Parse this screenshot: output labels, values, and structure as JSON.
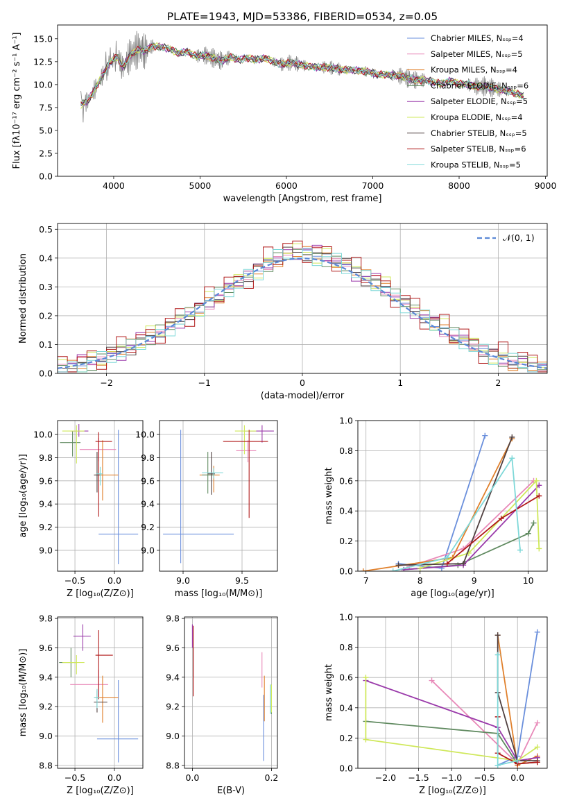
{
  "palette": [
    "#6a8fdc",
    "#e888b8",
    "#e0802c",
    "#608a60",
    "#9a3aaa",
    "#cfe85a",
    "#504040",
    "#b01818",
    "#7ed8d8"
  ],
  "chart_data": [
    {
      "id": "spectrum",
      "type": "line",
      "title": "PLATE=1943, MJD=53386, FIBERID=0534, z=0.05",
      "xlabel": "wavelength [Angstrom, rest frame]",
      "ylabel": "Flux [fλ10⁻¹⁷ erg cm⁻² s⁻¹ A⁻¹]",
      "xlim": [
        3350,
        9020
      ],
      "ylim": [
        0,
        16.5
      ],
      "xticks": [
        4000,
        5000,
        6000,
        7000,
        8000,
        9000
      ],
      "yticks": [
        0.0,
        2.5,
        5.0,
        7.5,
        10.0,
        12.5,
        15.0
      ],
      "legend_position": "upper-right",
      "data_color": "#808080",
      "data_x": [
        3620,
        3700,
        3800,
        3900,
        3960,
        4050,
        4100,
        4200,
        4300,
        4350,
        4450,
        4550,
        4650,
        4750,
        4850,
        4950,
        5050,
        5150,
        5250,
        5350,
        5450,
        5550,
        5650,
        5750,
        5850,
        5950,
        6050,
        6150,
        6250,
        6350,
        6450,
        6550,
        6650,
        6750,
        6850,
        6950,
        7050,
        7150,
        7250,
        7350,
        7400,
        7500,
        7600,
        7700,
        7800,
        7900,
        8000,
        8100,
        8200,
        8300,
        8400,
        8500,
        8600,
        8700,
        8750
      ],
      "data_y": [
        7.8,
        8.2,
        9.8,
        11.5,
        12.5,
        13.1,
        11.8,
        13.3,
        13.9,
        13.6,
        14.2,
        14.1,
        13.9,
        13.4,
        13.6,
        13.1,
        13.2,
        12.9,
        12.6,
        13.0,
        12.7,
        12.9,
        12.7,
        12.9,
        12.5,
        12.2,
        12.4,
        12.2,
        12.0,
        11.9,
        11.9,
        11.8,
        11.6,
        11.6,
        11.5,
        11.4,
        11.1,
        11.1,
        11.0,
        10.9,
        10.7,
        10.5,
        10.5,
        10.3,
        10.1,
        10.4,
        10.1,
        10.0,
        9.8,
        9.8,
        9.6,
        9.4,
        9.2,
        8.9,
        8.7
      ],
      "series": [
        {
          "name": "Chabrier MILES, N_SSP=4"
        },
        {
          "name": "Salpeter MILES, N_SSP=5"
        },
        {
          "name": "Kroupa MILES, N_SSP=4"
        },
        {
          "name": "Chabrier ELODIE, N_SSP=6"
        },
        {
          "name": "Salpeter ELODIE, N_SSP=5"
        },
        {
          "name": "Kroupa ELODIE, N_SSP=4"
        },
        {
          "name": "Chabrier STELIB, N_SSP=5"
        },
        {
          "name": "Salpeter STELIB, N_SSP=6"
        },
        {
          "name": "Kroupa STELIB, N_SSP=5"
        }
      ]
    },
    {
      "id": "residuals",
      "type": "line",
      "xlabel": "(data-model)/error",
      "ylabel": "Normed distribution",
      "xlim": [
        -2.5,
        2.5
      ],
      "ylim": [
        0,
        0.52
      ],
      "xticks": [
        -2,
        -1,
        0,
        1,
        2
      ],
      "yticks": [
        0.0,
        0.1,
        0.2,
        0.3,
        0.4,
        0.5
      ],
      "grid": true,
      "legend_position": "upper-right",
      "reference_curve": {
        "name": "𝒩(0, 1)",
        "mean": 0,
        "sigma": 1,
        "style": "dashed",
        "color": "#5a88d6"
      },
      "bins": [
        -2.5,
        -2.4,
        -2.3,
        -2.2,
        -2.1,
        -2.0,
        -1.9,
        -1.8,
        -1.7,
        -1.6,
        -1.5,
        -1.4,
        -1.3,
        -1.2,
        -1.1,
        -1.0,
        -0.9,
        -0.8,
        -0.7,
        -0.6,
        -0.5,
        -0.4,
        -0.3,
        -0.2,
        -0.1,
        0.0,
        0.1,
        0.2,
        0.3,
        0.4,
        0.5,
        0.6,
        0.7,
        0.8,
        0.9,
        1.0,
        1.1,
        1.2,
        1.3,
        1.4,
        1.5,
        1.6,
        1.7,
        1.8,
        1.9,
        2.0,
        2.1,
        2.2,
        2.3,
        2.4,
        2.5
      ],
      "hist_base": [
        0.018,
        0.025,
        0.03,
        0.04,
        0.05,
        0.062,
        0.075,
        0.09,
        0.105,
        0.12,
        0.14,
        0.16,
        0.18,
        0.2,
        0.22,
        0.245,
        0.27,
        0.29,
        0.315,
        0.34,
        0.36,
        0.38,
        0.4,
        0.41,
        0.42,
        0.42,
        0.41,
        0.4,
        0.39,
        0.37,
        0.35,
        0.33,
        0.31,
        0.29,
        0.265,
        0.24,
        0.215,
        0.19,
        0.17,
        0.15,
        0.13,
        0.11,
        0.095,
        0.08,
        0.065,
        0.05,
        0.04,
        0.032,
        0.025,
        0.02
      ],
      "series": [
        {
          "jitter": [
            0.0,
            0.005,
            -0.005,
            0.01,
            -0.01,
            0.005
          ]
        },
        {
          "jitter": [
            0.01,
            -0.01,
            0.02,
            -0.015,
            0.005,
            0.0
          ]
        },
        {
          "jitter": [
            -0.01,
            0.02,
            -0.01,
            0.015,
            -0.02,
            0.01
          ]
        },
        {
          "jitter": [
            0.015,
            -0.005,
            0.01,
            -0.02,
            0.02,
            -0.01
          ]
        },
        {
          "jitter": [
            -0.02,
            0.01,
            0.025,
            -0.01,
            0.0,
            0.015
          ]
        },
        {
          "jitter": [
            0.02,
            0.0,
            -0.02,
            0.03,
            -0.015,
            0.01
          ]
        },
        {
          "jitter": [
            0.0,
            -0.02,
            0.015,
            0.01,
            -0.01,
            0.02
          ]
        },
        {
          "jitter": [
            0.035,
            -0.03,
            0.02,
            0.04,
            -0.025,
            0.03
          ]
        },
        {
          "jitter": [
            -0.015,
            0.02,
            -0.025,
            0.005,
            0.02,
            -0.02
          ]
        }
      ]
    },
    {
      "id": "age-vs-Z",
      "type": "scatter",
      "xlabel": "Z [log₁₀(Z/Z⊙)]",
      "ylabel": "age  [log₁₀(age/yr)]",
      "xlim": [
        -0.72,
        0.36
      ],
      "ylim": [
        8.82,
        10.12
      ],
      "xticks": [
        -0.5,
        0.0
      ],
      "yticks": [
        9.0,
        9.2,
        9.4,
        9.6,
        9.8,
        10.0
      ],
      "grid": true,
      "errorbars": [
        {
          "x": 0.05,
          "xerr": [
            0.25,
            0.25
          ],
          "y": 9.14,
          "yerr": [
            0.26,
            0.9
          ]
        },
        {
          "x": -0.2,
          "xerr": [
            0.24,
            0.22
          ],
          "y": 9.87,
          "yerr": [
            0.1,
            0.1
          ]
        },
        {
          "x": -0.15,
          "xerr": [
            0.1,
            0.2
          ],
          "y": 9.65,
          "yerr": [
            0.22,
            0.3
          ]
        },
        {
          "x": -0.53,
          "xerr": [
            0.16,
            0.1
          ],
          "y": 9.93,
          "yerr": [
            0.12,
            0.1
          ]
        },
        {
          "x": -0.45,
          "xerr": [
            0.1,
            0.12
          ],
          "y": 10.03,
          "yerr": [
            0.05,
            0.06
          ]
        },
        {
          "x": -0.48,
          "xerr": [
            0.18,
            0.1
          ],
          "y": 10.03,
          "yerr": [
            0.28,
            0.05
          ]
        },
        {
          "x": -0.22,
          "xerr": [
            0.04,
            0.05
          ],
          "y": 9.65,
          "yerr": [
            0.15,
            0.2
          ]
        },
        {
          "x": -0.2,
          "xerr": [
            0.04,
            0.17
          ],
          "y": 9.94,
          "yerr": [
            0.65,
            0.08
          ]
        },
        {
          "x": -0.18,
          "xerr": [
            0.05,
            0.03
          ],
          "y": 9.66,
          "yerr": [
            0.1,
            0.06
          ]
        }
      ]
    },
    {
      "id": "age-vs-mass",
      "type": "scatter",
      "xlabel": "mass [log₁₀(M/M⊙)]",
      "xlim": [
        8.8,
        9.8
      ],
      "ylim": [
        8.82,
        10.12
      ],
      "xticks": [
        9.0,
        9.5
      ],
      "yticks": [
        9.0,
        9.2,
        9.4,
        9.6,
        9.8,
        10.0
      ],
      "grid": true,
      "errorbars": [
        {
          "x": 8.98,
          "xerr": [
            0.15,
            0.45
          ],
          "y": 9.14,
          "yerr": [
            0.25,
            0.9
          ]
        },
        {
          "x": 9.55,
          "xerr": [
            0.1,
            0.07
          ],
          "y": 9.86,
          "yerr": [
            0.1,
            0.09
          ]
        },
        {
          "x": 9.26,
          "xerr": [
            0.12,
            0.05
          ],
          "y": 9.65,
          "yerr": [
            0.15,
            0.08
          ]
        },
        {
          "x": 9.21,
          "xerr": [
            0.05,
            0.05
          ],
          "y": 9.65,
          "yerr": [
            0.16,
            0.2
          ]
        },
        {
          "x": 9.67,
          "xerr": [
            0.15,
            0.1
          ],
          "y": 10.03,
          "yerr": [
            0.1,
            0.05
          ]
        },
        {
          "x": 9.52,
          "xerr": [
            0.08,
            0.1
          ],
          "y": 10.03,
          "yerr": [
            0.2,
            0.05
          ]
        },
        {
          "x": 9.24,
          "xerr": [
            0.03,
            0.03
          ],
          "y": 9.66,
          "yerr": [
            0.18,
            0.19
          ]
        },
        {
          "x": 9.56,
          "xerr": [
            0.22,
            0.16
          ],
          "y": 9.94,
          "yerr": [
            0.66,
            0.1
          ]
        },
        {
          "x": 9.26,
          "xerr": [
            0.1,
            0.08
          ],
          "y": 9.67,
          "yerr": [
            0.05,
            0.04
          ]
        }
      ]
    },
    {
      "id": "massweight-vs-age",
      "type": "line",
      "xlabel": "age  [log₁₀(age/yr)]",
      "ylabel": "mass weight",
      "xlim": [
        6.85,
        10.35
      ],
      "ylim": [
        0,
        1.0
      ],
      "xticks": [
        7,
        8,
        9,
        10
      ],
      "yticks": [
        0.0,
        0.2,
        0.4,
        0.6,
        0.8,
        1.0
      ],
      "grid": true,
      "series": [
        {
          "x": [
            7.6,
            8.4,
            9.2
          ],
          "y": [
            0.05,
            0.02,
            0.9
          ]
        },
        {
          "x": [
            7.8,
            8.8,
            10.1
          ],
          "y": [
            0.03,
            0.15,
            0.6
          ]
        },
        {
          "x": [
            6.95,
            8.6,
            9.7
          ],
          "y": [
            0.0,
            0.09,
            0.88
          ]
        },
        {
          "x": [
            7.7,
            8.7,
            10.0,
            10.1
          ],
          "y": [
            0.01,
            0.04,
            0.25,
            0.32
          ]
        },
        {
          "x": [
            7.7,
            8.8,
            10.2
          ],
          "y": [
            0.01,
            0.04,
            0.57
          ]
        },
        {
          "x": [
            8.0,
            8.9,
            10.15,
            10.2
          ],
          "y": [
            0.02,
            0.12,
            0.6,
            0.15
          ]
        },
        {
          "x": [
            7.6,
            8.8,
            9.7
          ],
          "y": [
            0.04,
            0.05,
            0.89
          ]
        },
        {
          "x": [
            8.5,
            9.5,
            10.2
          ],
          "y": [
            0.05,
            0.35,
            0.5
          ]
        },
        {
          "x": [
            7.5,
            8.5,
            9.7,
            9.85
          ],
          "y": [
            0.0,
            0.09,
            0.75,
            0.14
          ]
        }
      ]
    },
    {
      "id": "mass-vs-Z",
      "type": "scatter",
      "xlabel": "Z [log₁₀(Z/Z⊙)]",
      "ylabel": "mass [log₁₀(M/M⊙)]",
      "xlim": [
        -0.72,
        0.36
      ],
      "ylim": [
        8.78,
        9.81
      ],
      "xticks": [
        -0.5,
        0.0
      ],
      "yticks": [
        8.8,
        9.0,
        9.2,
        9.4,
        9.6,
        9.8
      ],
      "grid": true,
      "errorbars": [
        {
          "x": 0.05,
          "xerr": [
            0.27,
            0.25
          ],
          "y": 8.98,
          "yerr": [
            0.16,
            0.4
          ]
        },
        {
          "x": -0.2,
          "xerr": [
            0.36,
            0.12
          ],
          "y": 9.35,
          "yerr": [
            0.1,
            0.1
          ]
        },
        {
          "x": -0.15,
          "xerr": [
            0.1,
            0.2
          ],
          "y": 9.26,
          "yerr": [
            0.17,
            0.15
          ]
        },
        {
          "x": -0.55,
          "xerr": [
            0.15,
            0.08
          ],
          "y": 9.5,
          "yerr": [
            0.1,
            0.1
          ]
        },
        {
          "x": -0.4,
          "xerr": [
            0.12,
            0.1
          ],
          "y": 9.68,
          "yerr": [
            0.1,
            0.08
          ]
        },
        {
          "x": -0.48,
          "xerr": [
            0.18,
            0.1
          ],
          "y": 9.5,
          "yerr": [
            0.08,
            0.05
          ]
        },
        {
          "x": -0.22,
          "xerr": [
            0.04,
            0.13
          ],
          "y": 9.23,
          "yerr": [
            0.07,
            0.08
          ]
        },
        {
          "x": -0.2,
          "xerr": [
            0.04,
            0.18
          ],
          "y": 9.55,
          "yerr": [
            0.3,
            0.17
          ]
        },
        {
          "x": -0.22,
          "xerr": [
            0.04,
            0.03
          ],
          "y": 9.26,
          "yerr": [
            0.07,
            0.06
          ]
        }
      ]
    },
    {
      "id": "mass-vs-EBV",
      "type": "scatter",
      "xlabel": "E(B-V)",
      "xlim": [
        -0.02,
        0.215
      ],
      "ylim": [
        8.78,
        9.81
      ],
      "xticks": [
        0.0,
        0.2
      ],
      "yticks": [
        8.8,
        9.0,
        9.2,
        9.4,
        9.6,
        9.8
      ],
      "grid": true,
      "errorbars": [
        {
          "x": 0.18,
          "y": 8.98,
          "yerr": [
            0.15,
            0.3
          ]
        },
        {
          "x": 0.176,
          "y": 9.45,
          "yerr": [
            0.12,
            0.12
          ]
        },
        {
          "x": 0.182,
          "y": 9.25,
          "yerr": [
            0.15,
            0.16
          ]
        },
        {
          "x": 0.2,
          "y": 9.25,
          "yerr": [
            0.1,
            0.1
          ]
        },
        {
          "x": 0.0,
          "y": 9.68,
          "yerr": [
            0.08,
            0.08
          ]
        },
        {
          "x": 0.2,
          "y": 9.25,
          "yerr": [
            0.09,
            0.1
          ]
        },
        {
          "x": 0.002,
          "y": 9.5,
          "yerr": [
            0.1,
            0.1
          ]
        },
        {
          "x": 0.002,
          "y": 9.55,
          "yerr": [
            0.28,
            0.2
          ]
        },
        {
          "x": 0.197,
          "y": 9.25,
          "yerr": [
            0.1,
            0.1
          ]
        }
      ]
    },
    {
      "id": "massweight-vs-Z",
      "type": "line",
      "xlabel": "Z [log₁₀(Z/Z⊙)]",
      "ylabel": "mass weight",
      "xlim": [
        -2.42,
        0.45
      ],
      "ylim": [
        0,
        1.0
      ],
      "xticks": [
        -2.0,
        -1.5,
        -1.0,
        -0.5,
        0.0
      ],
      "yticks": [
        0.0,
        0.2,
        0.4,
        0.6,
        0.8,
        1.0
      ],
      "grid": true,
      "series": [
        {
          "x": [
            -0.3,
            0.0,
            0.3
          ],
          "y": [
            0.02,
            0.08,
            0.9
          ]
        },
        {
          "x": [
            -1.3,
            0.0,
            0.3
          ],
          "y": [
            0.58,
            0.03,
            0.3
          ]
        },
        {
          "x": [
            -0.3,
            0.0,
            0.3
          ],
          "y": [
            0.88,
            0.02,
            0.08
          ]
        },
        {
          "x": [
            -2.3,
            -0.3,
            0.0,
            0.3
          ],
          "y": [
            0.31,
            0.23,
            0.03,
            0.04
          ]
        },
        {
          "x": [
            -2.3,
            -0.3,
            0.0,
            0.3
          ],
          "y": [
            0.58,
            0.27,
            0.05,
            0.07
          ]
        },
        {
          "x": [
            -2.3,
            -2.3,
            0.0,
            0.3
          ],
          "y": [
            0.6,
            0.19,
            0.05,
            0.14
          ]
        },
        {
          "x": [
            -0.3,
            -0.3,
            0.0,
            0.3
          ],
          "y": [
            0.88,
            0.5,
            0.05,
            0.05
          ]
        },
        {
          "x": [
            -0.3,
            -0.3,
            0.0,
            0.3
          ],
          "y": [
            0.34,
            0.1,
            0.03,
            0.04
          ]
        },
        {
          "x": [
            -0.3,
            -0.3,
            0.0
          ],
          "y": [
            0.75,
            0.02,
            0.05
          ]
        }
      ]
    }
  ]
}
